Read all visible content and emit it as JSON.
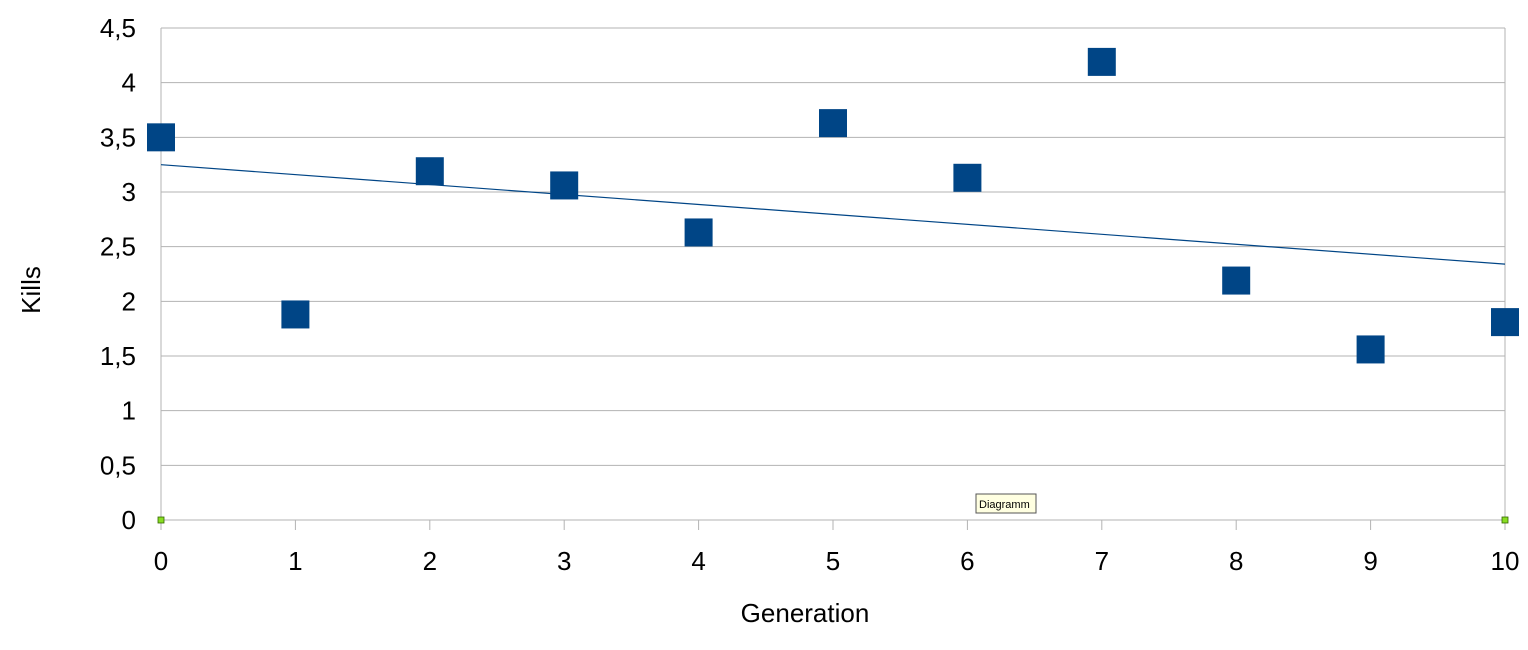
{
  "chart_data": {
    "type": "scatter",
    "title": "",
    "xlabel": "Generation",
    "ylabel": "Kills",
    "xlim": [
      0,
      10
    ],
    "ylim": [
      0,
      4.5
    ],
    "x_ticks": [
      "0",
      "1",
      "2",
      "3",
      "4",
      "5",
      "6",
      "7",
      "8",
      "9",
      "10"
    ],
    "y_ticks": [
      {
        "value": 0,
        "label": "0"
      },
      {
        "value": 0.5,
        "label": "0,5"
      },
      {
        "value": 1,
        "label": "1"
      },
      {
        "value": 1.5,
        "label": "1,5"
      },
      {
        "value": 2,
        "label": "2"
      },
      {
        "value": 2.5,
        "label": "2,5"
      },
      {
        "value": 3,
        "label": "3"
      },
      {
        "value": 3.5,
        "label": "3,5"
      },
      {
        "value": 4,
        "label": "4"
      },
      {
        "value": 4.5,
        "label": "4,5"
      }
    ],
    "grid": true,
    "series": [
      {
        "x": [
          0,
          1,
          2,
          3,
          4,
          5,
          6,
          7,
          8,
          9,
          10
        ],
        "y": [
          3.5,
          1.88,
          3.19,
          3.06,
          2.63,
          3.63,
          3.13,
          4.19,
          2.19,
          1.56,
          1.81
        ],
        "color": "#004586",
        "marker": "square"
      }
    ],
    "trendline": {
      "type": "linear",
      "x": [
        0,
        10
      ],
      "y": [
        3.25,
        2.34
      ],
      "color": "#004586"
    }
  },
  "tooltip": {
    "text": "Diagramm"
  }
}
